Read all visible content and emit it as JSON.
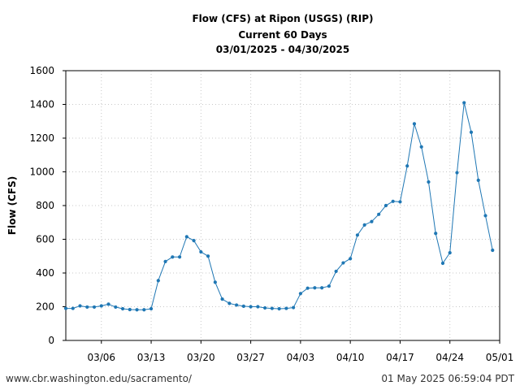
{
  "chart_data": {
    "type": "line",
    "title": "Flow (CFS) at Ripon (USGS) (RIP)",
    "subtitle": "Current 60 Days",
    "date_range": "03/01/2025 - 04/30/2025",
    "ylabel": "Flow (CFS)",
    "xlabel": "",
    "ylim": [
      0,
      1600
    ],
    "yticks": [
      0,
      200,
      400,
      600,
      800,
      1000,
      1200,
      1400,
      1600
    ],
    "xlim": [
      "2025-03-01",
      "2025-05-01"
    ],
    "xticks": [
      {
        "label": "03/06",
        "date": "2025-03-06"
      },
      {
        "label": "03/13",
        "date": "2025-03-13"
      },
      {
        "label": "03/20",
        "date": "2025-03-20"
      },
      {
        "label": "03/27",
        "date": "2025-03-27"
      },
      {
        "label": "04/03",
        "date": "2025-04-03"
      },
      {
        "label": "04/10",
        "date": "2025-04-10"
      },
      {
        "label": "04/17",
        "date": "2025-04-17"
      },
      {
        "label": "04/24",
        "date": "2025-04-24"
      },
      {
        "label": "05/01",
        "date": "2025-05-01"
      }
    ],
    "grid": true,
    "series": [
      {
        "color": "#1f77b4",
        "x": [
          "2025-03-01",
          "2025-03-02",
          "2025-03-03",
          "2025-03-04",
          "2025-03-05",
          "2025-03-06",
          "2025-03-07",
          "2025-03-08",
          "2025-03-09",
          "2025-03-10",
          "2025-03-11",
          "2025-03-12",
          "2025-03-13",
          "2025-03-14",
          "2025-03-15",
          "2025-03-16",
          "2025-03-17",
          "2025-03-18",
          "2025-03-19",
          "2025-03-20",
          "2025-03-21",
          "2025-03-22",
          "2025-03-23",
          "2025-03-24",
          "2025-03-25",
          "2025-03-26",
          "2025-03-27",
          "2025-03-28",
          "2025-03-29",
          "2025-03-30",
          "2025-03-31",
          "2025-04-01",
          "2025-04-02",
          "2025-04-03",
          "2025-04-04",
          "2025-04-05",
          "2025-04-06",
          "2025-04-07",
          "2025-04-08",
          "2025-04-09",
          "2025-04-10",
          "2025-04-11",
          "2025-04-12",
          "2025-04-13",
          "2025-04-14",
          "2025-04-15",
          "2025-04-16",
          "2025-04-17",
          "2025-04-18",
          "2025-04-19",
          "2025-04-20",
          "2025-04-21",
          "2025-04-22",
          "2025-04-23",
          "2025-04-24",
          "2025-04-25",
          "2025-04-26",
          "2025-04-27",
          "2025-04-28",
          "2025-04-29",
          "2025-04-30"
        ],
        "y": [
          190,
          190,
          205,
          198,
          198,
          205,
          215,
          198,
          188,
          183,
          182,
          182,
          188,
          355,
          468,
          495,
          495,
          615,
          592,
          525,
          500,
          345,
          245,
          220,
          210,
          203,
          200,
          200,
          193,
          190,
          188,
          190,
          195,
          278,
          310,
          312,
          312,
          322,
          410,
          460,
          485,
          625,
          685,
          705,
          748,
          800,
          825,
          822,
          1035,
          1285,
          1148,
          940,
          635,
          458,
          520,
          995,
          1410,
          1235,
          950,
          740,
          535
        ]
      }
    ]
  },
  "footer": {
    "left": "www.cbr.washington.edu/sacramento/",
    "right": "01 May 2025 06:59:04 PDT"
  }
}
